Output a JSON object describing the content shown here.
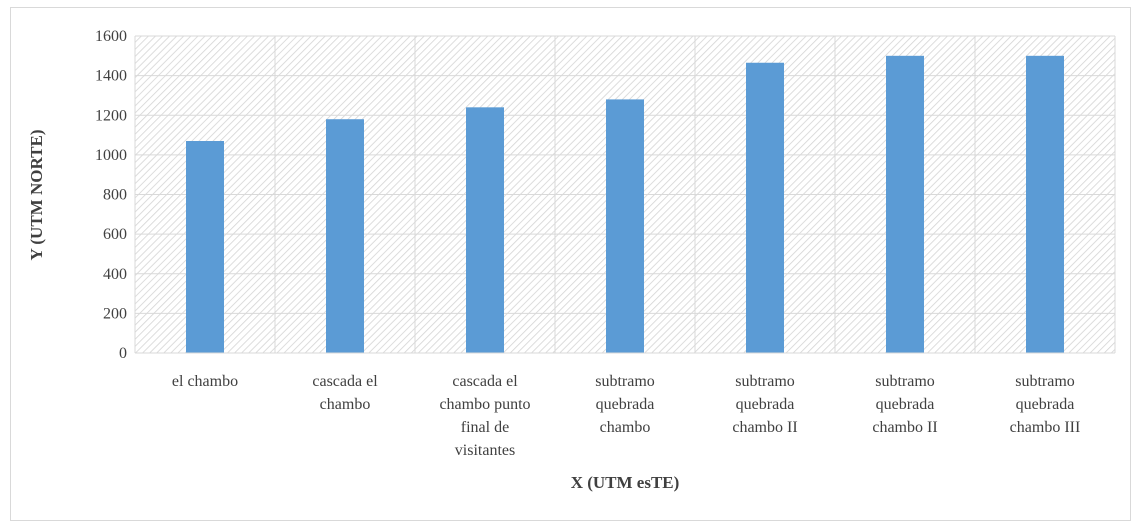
{
  "chart_data": {
    "type": "bar",
    "categories": [
      [
        "el chambo"
      ],
      [
        "cascada el",
        "chambo"
      ],
      [
        "cascada el",
        "chambo punto",
        "final de",
        "visitantes"
      ],
      [
        "subtramo",
        "quebrada",
        "chambo"
      ],
      [
        "subtramo",
        "quebrada",
        "chambo II"
      ],
      [
        "subtramo",
        "quebrada",
        "chambo II"
      ],
      [
        "subtramo",
        "quebrada",
        "chambo III"
      ]
    ],
    "values": [
      1070,
      1180,
      1240,
      1280,
      1465,
      1500,
      1500
    ],
    "xlabel": "X (UTM esTE)",
    "ylabel": "Y (UTM NORTE)",
    "ylim": [
      0,
      1600
    ],
    "yticks": [
      0,
      200,
      400,
      600,
      800,
      1000,
      1200,
      1400,
      1600
    ],
    "grid": true,
    "bar_color": "#5b9bd5",
    "plot_pattern": "diagonal-hatch"
  }
}
